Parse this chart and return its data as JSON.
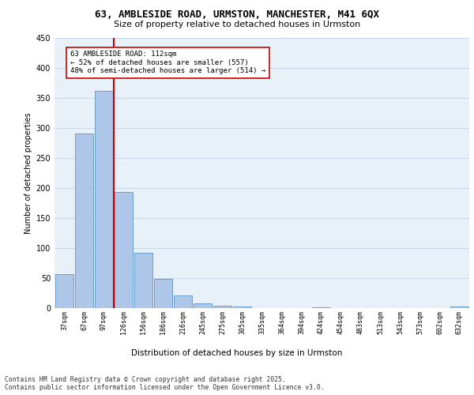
{
  "title_line1": "63, AMBLESIDE ROAD, URMSTON, MANCHESTER, M41 6QX",
  "title_line2": "Size of property relative to detached houses in Urmston",
  "xlabel": "Distribution of detached houses by size in Urmston",
  "ylabel": "Number of detached properties",
  "footer_line1": "Contains HM Land Registry data © Crown copyright and database right 2025.",
  "footer_line2": "Contains public sector information licensed under the Open Government Licence v3.0.",
  "annotation_line1": "63 AMBLESIDE ROAD: 112sqm",
  "annotation_line2": "← 52% of detached houses are smaller (557)",
  "annotation_line3": "48% of semi-detached houses are larger (514) →",
  "categories": [
    "37sqm",
    "67sqm",
    "97sqm",
    "126sqm",
    "156sqm",
    "186sqm",
    "216sqm",
    "245sqm",
    "275sqm",
    "305sqm",
    "335sqm",
    "364sqm",
    "394sqm",
    "424sqm",
    "454sqm",
    "483sqm",
    "513sqm",
    "543sqm",
    "573sqm",
    "602sqm",
    "632sqm"
  ],
  "values": [
    57,
    291,
    361,
    193,
    92,
    49,
    21,
    8,
    4,
    2,
    0,
    0,
    0,
    1,
    0,
    0,
    0,
    0,
    0,
    0,
    2
  ],
  "bar_color": "#aec6e8",
  "bar_edge_color": "#5a96c8",
  "vline_color": "#cc0000",
  "vline_x": 2.5,
  "annotation_box_edge_color": "#cc0000",
  "annotation_box_face_color": "#ffffff",
  "grid_color": "#c8d8e8",
  "background_color": "#e8f0f8",
  "ylim": [
    0,
    450
  ],
  "yticks": [
    0,
    50,
    100,
    150,
    200,
    250,
    300,
    350,
    400,
    450
  ]
}
